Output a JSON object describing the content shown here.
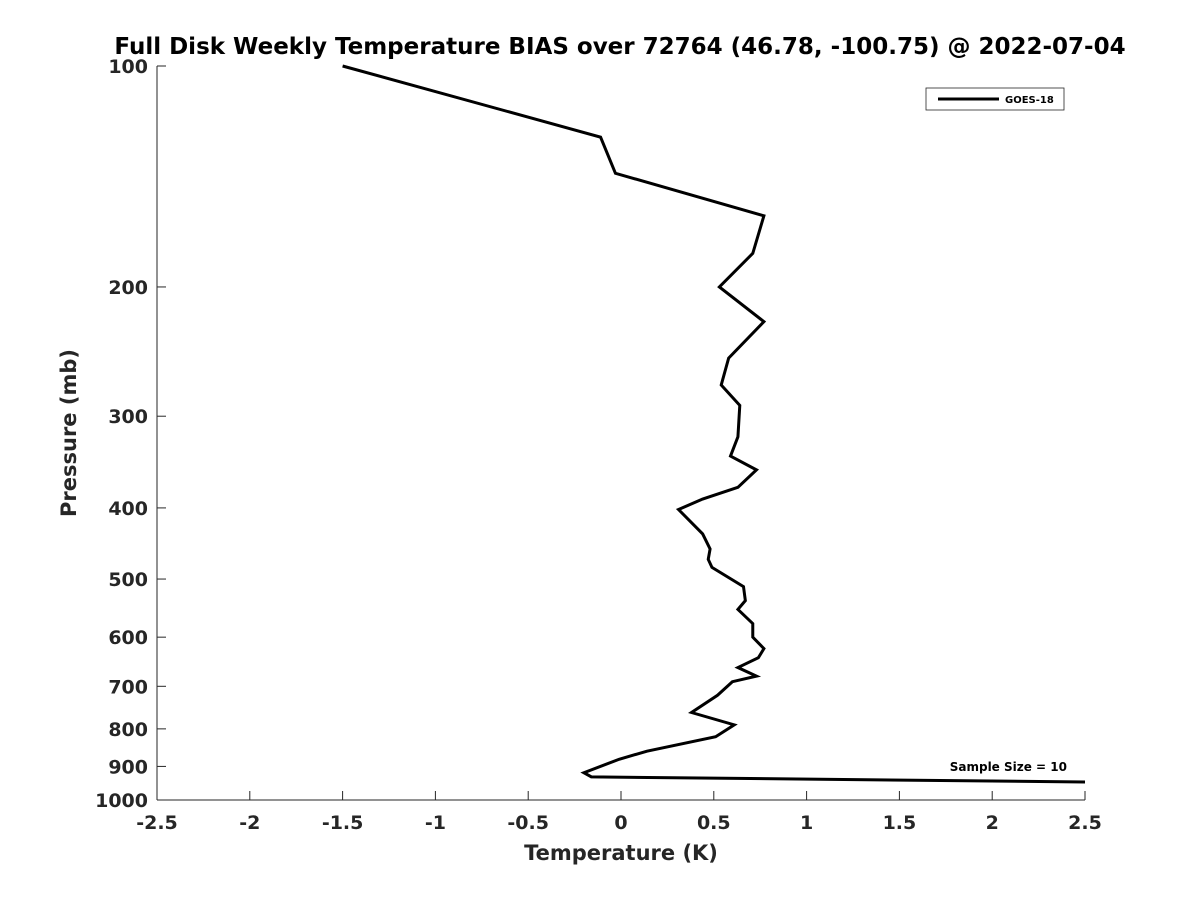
{
  "chart_data": {
    "type": "line",
    "title": "Full Disk Weekly Temperature BIAS over 72764 (46.78, -100.75) @ 2022-07-04",
    "xlabel": "Temperature (K)",
    "ylabel": "Pressure (mb)",
    "xlim": [
      -2.5,
      2.5
    ],
    "ylim": [
      100,
      1000
    ],
    "yscale": "log",
    "y_reversed": true,
    "x_ticks": [
      "-2.5",
      "-2",
      "-1.5",
      "-1",
      "-0.5",
      "0",
      "0.5",
      "1",
      "1.5",
      "2",
      "2.5"
    ],
    "y_ticks": [
      "100",
      "200",
      "300",
      "400",
      "500",
      "600",
      "700",
      "800",
      "900",
      "1000"
    ],
    "grid": false,
    "legend_position": "top-right",
    "annotation": "Sample Size = 10",
    "series": [
      {
        "name": "GOES-18",
        "color": "#000000",
        "points": [
          [
            -1.5,
            100
          ],
          [
            -0.11,
            125
          ],
          [
            -0.03,
            140
          ],
          [
            0.77,
            160
          ],
          [
            0.71,
            180
          ],
          [
            0.53,
            200
          ],
          [
            0.77,
            223
          ],
          [
            0.58,
            250
          ],
          [
            0.54,
            272
          ],
          [
            0.64,
            290
          ],
          [
            0.63,
            320
          ],
          [
            0.59,
            340
          ],
          [
            0.73,
            355
          ],
          [
            0.63,
            375
          ],
          [
            0.44,
            389
          ],
          [
            0.31,
            402
          ],
          [
            0.44,
            434
          ],
          [
            0.48,
            455
          ],
          [
            0.47,
            470
          ],
          [
            0.49,
            482
          ],
          [
            0.66,
            512
          ],
          [
            0.67,
            535
          ],
          [
            0.63,
            550
          ],
          [
            0.71,
            575
          ],
          [
            0.71,
            600
          ],
          [
            0.77,
            622
          ],
          [
            0.74,
            640
          ],
          [
            0.63,
            660
          ],
          [
            0.73,
            678
          ],
          [
            0.6,
            690
          ],
          [
            0.52,
            720
          ],
          [
            0.38,
            760
          ],
          [
            0.61,
            790
          ],
          [
            0.51,
            820
          ],
          [
            0.14,
            858
          ],
          [
            -0.01,
            880
          ],
          [
            -0.2,
            918
          ],
          [
            -0.16,
            930
          ],
          [
            2.5,
            945
          ]
        ]
      }
    ]
  }
}
